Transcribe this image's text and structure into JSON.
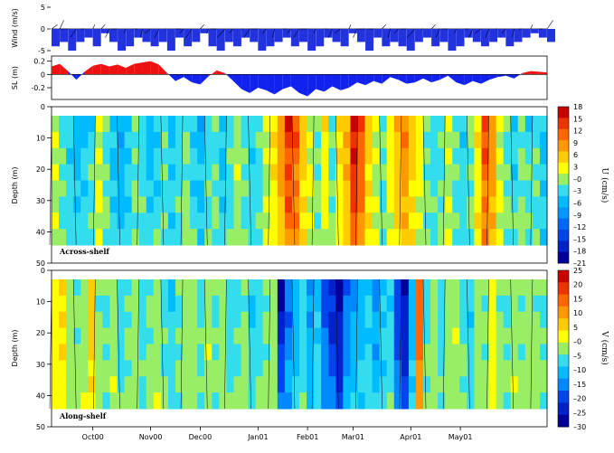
{
  "chart_data": [
    {
      "type": "line",
      "ylabel": "Wind (m/s)",
      "ylim": [
        -5,
        5
      ],
      "yticks": [
        "5",
        "0",
        "-5"
      ],
      "note": "stick plot of wind vectors (approximate)",
      "t": [
        0,
        4,
        8,
        12,
        16,
        20,
        24,
        28,
        32,
        36,
        40,
        44,
        48,
        52,
        56,
        60,
        64,
        68,
        72,
        76,
        80,
        84,
        88,
        92,
        96,
        100,
        104,
        108,
        112,
        116,
        120,
        124,
        128,
        132,
        136,
        140,
        144,
        148,
        152,
        156,
        160,
        164,
        168,
        172,
        176,
        180,
        184,
        188,
        192,
        196,
        200,
        204,
        208,
        212,
        216,
        220,
        224,
        228,
        232,
        236,
        240
      ],
      "u": [
        -4,
        -3,
        -5,
        -3,
        -2,
        -4,
        -1,
        -3,
        -5,
        -4,
        -2,
        -3,
        -4,
        -3,
        -5,
        -2,
        -4,
        -3,
        -1,
        -4,
        -5,
        -3,
        -4,
        -2,
        -3,
        -5,
        -4,
        -3,
        -2,
        -4,
        -3,
        -5,
        -4,
        -2,
        -3,
        -4,
        -1,
        -3,
        -5,
        -2,
        -4,
        -3,
        -4,
        -5,
        -3,
        -2,
        -4,
        -3,
        -5,
        -4,
        -2,
        -3,
        -4,
        -3,
        -2,
        -4,
        -3,
        -2,
        -1,
        -2,
        3
      ],
      "v": [
        3,
        2,
        -4,
        -3,
        -2,
        1,
        2,
        -2,
        -3,
        -1,
        2,
        -1,
        -3,
        -2,
        -1,
        3,
        -2,
        -3,
        2,
        -1,
        -3,
        -4,
        -2,
        1,
        -3,
        -4,
        -2,
        -1,
        2,
        -2,
        -3,
        -4,
        -1,
        2,
        -2,
        -3,
        1,
        -2,
        -4,
        -3,
        2,
        -1,
        -2,
        -3,
        -4,
        -1,
        2,
        -2,
        -3,
        -1,
        2,
        -2,
        -3,
        -2,
        -1,
        -2,
        -1,
        -2,
        1,
        2,
        3
      ]
    },
    {
      "type": "area",
      "ylabel": "SL (m)",
      "ylim": [
        -0.35,
        0.25
      ],
      "yticks": [
        "0.2",
        "0",
        "-0.2"
      ],
      "t": [
        0,
        4,
        8,
        12,
        16,
        20,
        24,
        28,
        32,
        36,
        40,
        44,
        48,
        52,
        56,
        60,
        64,
        68,
        72,
        76,
        80,
        84,
        88,
        92,
        96,
        100,
        104,
        108,
        112,
        116,
        120,
        124,
        128,
        132,
        136,
        140,
        144,
        148,
        152,
        156,
        160,
        164,
        168,
        172,
        176,
        180,
        184,
        188,
        192,
        196,
        200,
        204,
        208,
        212,
        216,
        220,
        224,
        228,
        232,
        236,
        240
      ],
      "values": [
        0.12,
        0.16,
        0.05,
        -0.08,
        0.04,
        0.13,
        0.16,
        0.12,
        0.15,
        0.1,
        0.16,
        0.18,
        0.2,
        0.15,
        0.02,
        -0.1,
        -0.04,
        -0.12,
        -0.15,
        -0.03,
        0.06,
        0.02,
        -0.1,
        -0.22,
        -0.28,
        -0.2,
        -0.24,
        -0.3,
        -0.22,
        -0.18,
        -0.28,
        -0.33,
        -0.22,
        -0.26,
        -0.18,
        -0.24,
        -0.2,
        -0.12,
        -0.16,
        -0.1,
        -0.14,
        -0.04,
        -0.08,
        -0.14,
        -0.12,
        -0.06,
        -0.12,
        -0.08,
        -0.02,
        -0.12,
        -0.16,
        -0.1,
        -0.14,
        -0.08,
        -0.04,
        -0.02,
        -0.06,
        0.02,
        0.05,
        0.04,
        0.03
      ]
    },
    {
      "type": "heatmap",
      "title": "Across-shelf",
      "ylabel": "Depth (m)",
      "yticks": [
        "0",
        "10",
        "20",
        "30",
        "40",
        "50"
      ],
      "colorbar_label": "U (cm/s)",
      "colorbar_ticks": [
        "18",
        "15",
        "12",
        "9",
        "6",
        "3",
        "–0",
        "–3",
        "–6",
        "–9",
        "–12",
        "–15",
        "–18",
        "–21"
      ],
      "colors": [
        "#cc0000",
        "#ee3300",
        "#ff6600",
        "#ff9900",
        "#ffcc00",
        "#ffff00",
        "#99ee66",
        "#33ddee",
        "#00bbff",
        "#0099ff",
        "#0066ff",
        "#0044ee",
        "#0022cc",
        "#000099"
      ],
      "column_values": [
        1,
        -2,
        -4,
        -6,
        -5,
        -3,
        2,
        -2,
        -5,
        -7,
        -4,
        -1,
        -3,
        -6,
        -4,
        -2,
        -5,
        -3,
        -1,
        -4,
        -6,
        -3,
        -2,
        -5,
        -3,
        0,
        -2,
        -4,
        -3,
        1,
        4,
        9,
        15,
        12,
        6,
        2,
        -1,
        3,
        -2,
        4,
        8,
        17,
        13,
        5,
        1,
        -2,
        3,
        7,
        10,
        6,
        3,
        -1,
        -3,
        -2,
        1,
        -2,
        -4,
        -1,
        4,
        13,
        9,
        2,
        -2,
        -4,
        -1,
        -3,
        -2,
        -5
      ]
    },
    {
      "type": "heatmap",
      "title": "Along-shelf",
      "ylabel": "Depth (m)",
      "yticks": [
        "0",
        "10",
        "20",
        "30",
        "40",
        "50"
      ],
      "xticks": [
        "Oct00",
        "Nov00",
        "Dec00",
        "Jan01",
        "Feb01",
        "Mar01",
        "Apr01",
        "May01"
      ],
      "colorbar_label": "V (cm/s)",
      "colorbar_ticks": [
        "25",
        "20",
        "15",
        "10",
        "5",
        "–0",
        "–5",
        "–10",
        "–15",
        "–20",
        "–25",
        "–30"
      ],
      "colors": [
        "#cc0000",
        "#ee3300",
        "#ff6600",
        "#ff9900",
        "#ffcc00",
        "#ffff00",
        "#99ee66",
        "#33ddee",
        "#00bbff",
        "#0088ff",
        "#0044ee",
        "#0022cc",
        "#000099"
      ],
      "column_values": [
        2,
        4,
        -3,
        -5,
        -2,
        6,
        -4,
        -6,
        -2,
        -8,
        -5,
        -3,
        -7,
        -4,
        -2,
        -6,
        -9,
        -5,
        -3,
        -4,
        -7,
        -2,
        -5,
        -3,
        -8,
        -6,
        -4,
        -10,
        -7,
        -5,
        -3,
        -26,
        -18,
        -12,
        -8,
        -14,
        -10,
        -20,
        -24,
        -30,
        -18,
        -14,
        -12,
        -9,
        -15,
        -10,
        -8,
        -22,
        -28,
        -12,
        16,
        -6,
        -3,
        -8,
        -4,
        -2,
        -6,
        -9,
        -3,
        -5,
        2,
        -4,
        -6,
        -2,
        -5,
        -3,
        -4,
        -6
      ]
    }
  ]
}
